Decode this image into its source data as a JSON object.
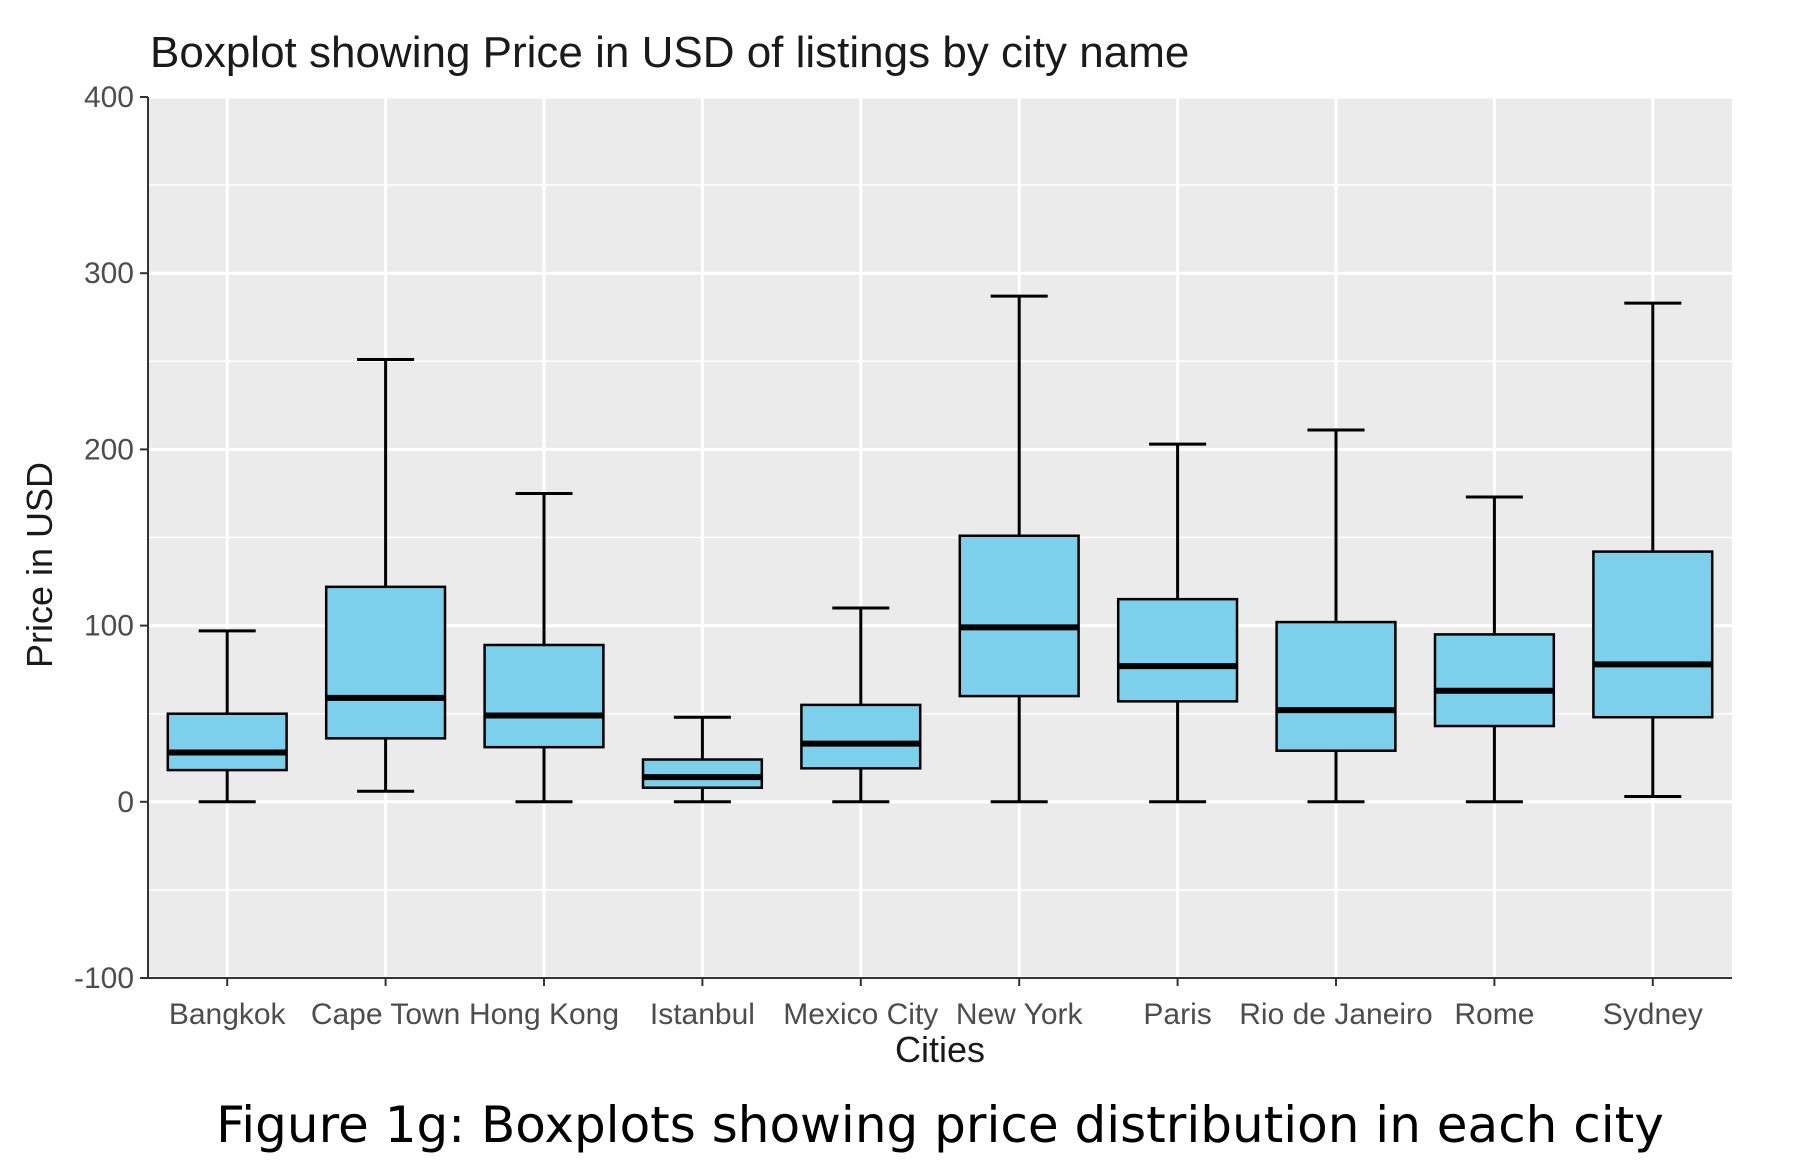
{
  "caption": "Figure 1g: Boxplots showing price distribution in each city",
  "chart_data": {
    "type": "boxplot",
    "title": "Boxplot showing Price in USD of listings by city name",
    "xlabel": "Cities",
    "ylabel": "Price in USD",
    "ylim": [
      -100,
      400
    ],
    "yticks": [
      -100,
      0,
      100,
      200,
      300,
      400
    ],
    "grid": true,
    "legend": "none",
    "categories": [
      "Bangkok",
      "Cape Town",
      "Hong Kong",
      "Istanbul",
      "Mexico City",
      "New York",
      "Paris",
      "Rio de Janeiro",
      "Rome",
      "Sydney"
    ],
    "boxes": [
      {
        "city": "Bangkok",
        "min": 0,
        "q1": 18,
        "median": 28,
        "q3": 50,
        "max": 97
      },
      {
        "city": "Cape Town",
        "min": 6,
        "q1": 36,
        "median": 59,
        "q3": 122,
        "max": 251
      },
      {
        "city": "Hong Kong",
        "min": 0,
        "q1": 31,
        "median": 49,
        "q3": 89,
        "max": 175
      },
      {
        "city": "Istanbul",
        "min": 0,
        "q1": 8,
        "median": 14,
        "q3": 24,
        "max": 48
      },
      {
        "city": "Mexico City",
        "min": 0,
        "q1": 19,
        "median": 33,
        "q3": 55,
        "max": 110
      },
      {
        "city": "New York",
        "min": 0,
        "q1": 60,
        "median": 99,
        "q3": 151,
        "max": 287
      },
      {
        "city": "Paris",
        "min": 0,
        "q1": 57,
        "median": 77,
        "q3": 115,
        "max": 203
      },
      {
        "city": "Rio de Janeiro",
        "min": 0,
        "q1": 29,
        "median": 52,
        "q3": 102,
        "max": 211
      },
      {
        "city": "Rome",
        "min": 0,
        "q1": 43,
        "median": 63,
        "q3": 95,
        "max": 173
      },
      {
        "city": "Sydney",
        "min": 3,
        "q1": 48,
        "median": 78,
        "q3": 142,
        "max": 283
      }
    ],
    "colors": {
      "box_fill": "#7dd0ec",
      "panel_background": "#ebebeb",
      "grid": "#ffffff",
      "outline": "#000000"
    }
  }
}
